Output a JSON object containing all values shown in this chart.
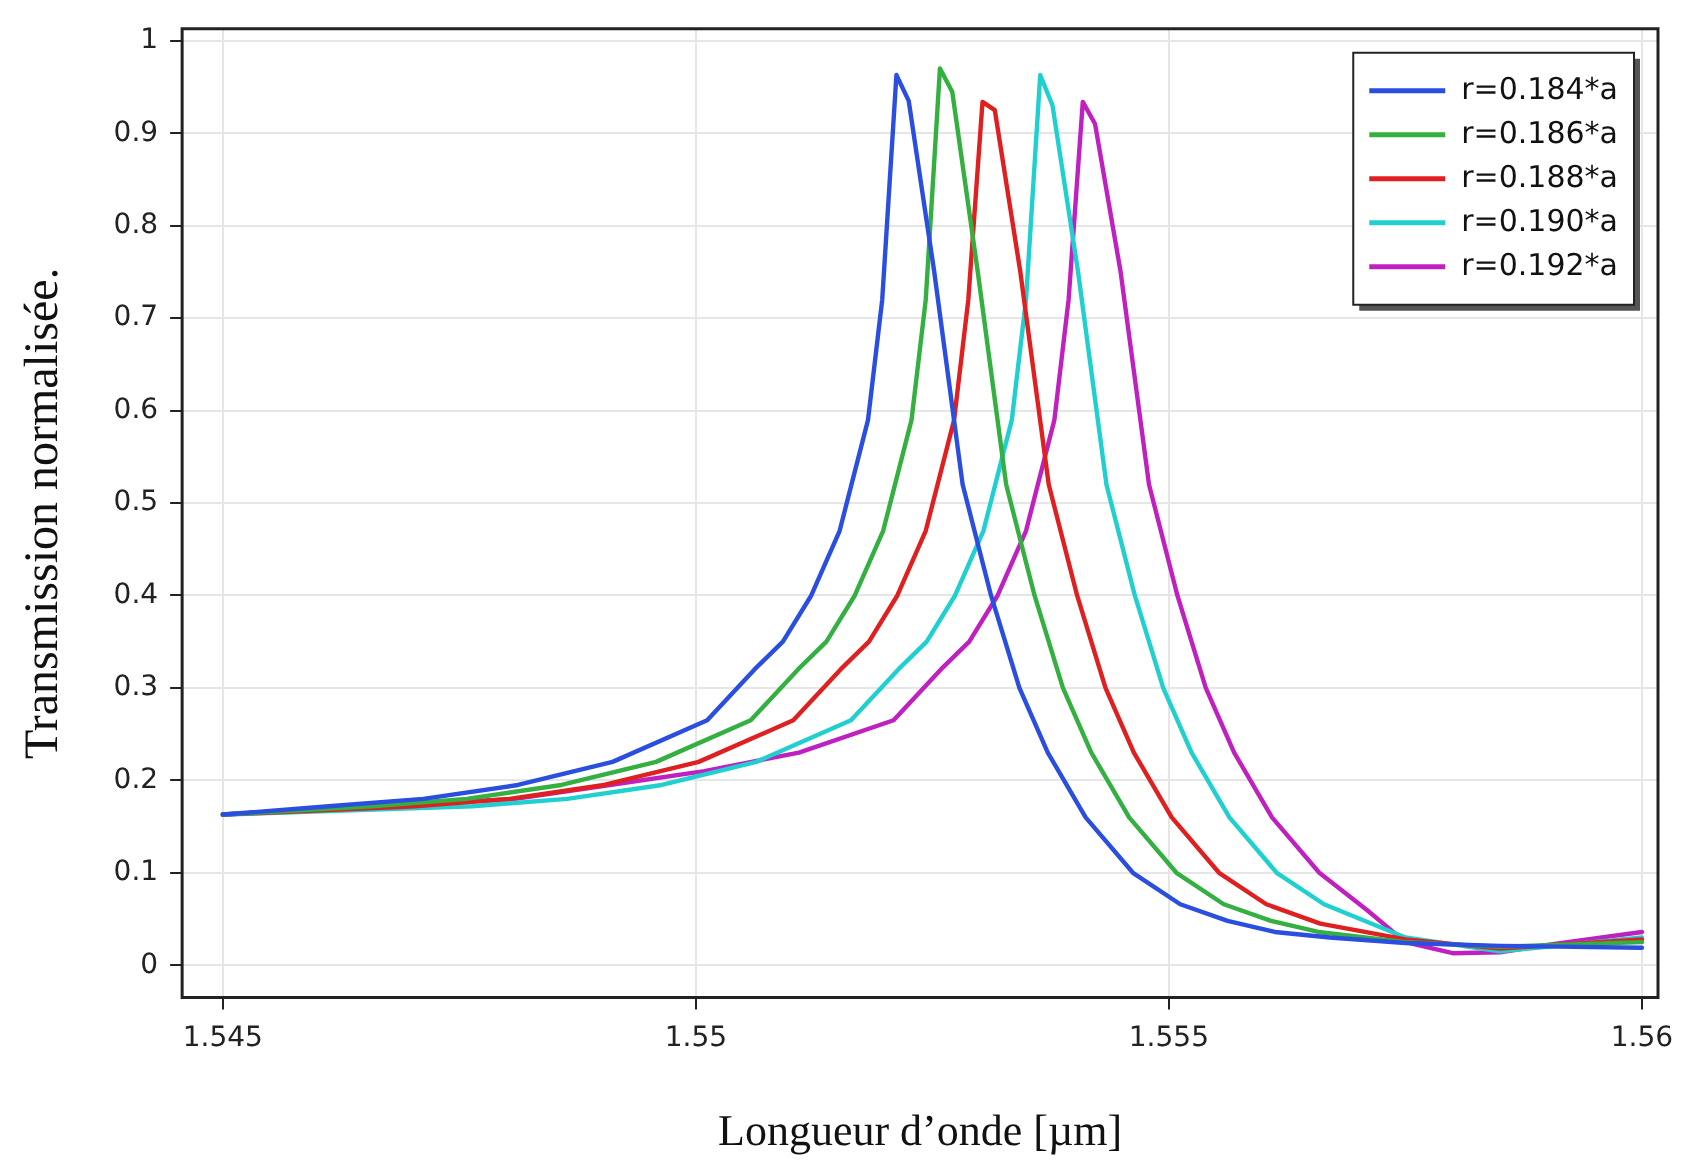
{
  "chart_data": {
    "type": "line",
    "xlabel": "Longueur d’onde [µm]",
    "ylabel": "Transmission normalisée.",
    "xlim": [
      1.54457,
      1.56017
    ],
    "ylim": [
      -0.035,
      1.013
    ],
    "xticks": [
      1.545,
      1.55,
      1.555,
      1.56
    ],
    "yticks": [
      0,
      0.1,
      0.2,
      0.3,
      0.4,
      0.5,
      0.6,
      0.7,
      0.8,
      0.9,
      1
    ],
    "grid": true,
    "legend": "top right",
    "marker": "none",
    "line_style": "solid",
    "series": [
      {
        "name": "r=0.184*a",
        "color": "#2a4fe0",
        "x": [
          1.545,
          1.54612,
          1.54712,
          1.54812,
          1.54912,
          1.55012,
          1.55062,
          1.55092,
          1.55122,
          1.55152,
          1.55182,
          1.55197,
          1.55212,
          1.55225,
          1.55252,
          1.55282,
          1.55312,
          1.55342,
          1.55372,
          1.55412,
          1.55462,
          1.55512,
          1.55562,
          1.55612,
          1.5567,
          1.5575,
          1.5585,
          1.56
        ],
        "values": [
          0.163,
          0.172,
          0.18,
          0.195,
          0.22,
          0.265,
          0.32,
          0.35,
          0.4,
          0.47,
          0.59,
          0.72,
          0.963,
          0.935,
          0.75,
          0.52,
          0.4,
          0.3,
          0.23,
          0.16,
          0.1,
          0.066,
          0.048,
          0.036,
          0.03,
          0.024,
          0.021,
          0.019
        ]
      },
      {
        "name": "r=0.186*a",
        "color": "#33b040",
        "x": [
          1.545,
          1.54658,
          1.54758,
          1.54858,
          1.54958,
          1.55058,
          1.55108,
          1.55138,
          1.55168,
          1.55198,
          1.55228,
          1.55243,
          1.55258,
          1.55271,
          1.55298,
          1.55328,
          1.55358,
          1.55388,
          1.55418,
          1.55458,
          1.55508,
          1.55558,
          1.55608,
          1.55658,
          1.5575,
          1.5585,
          1.56
        ],
        "values": [
          0.163,
          0.172,
          0.18,
          0.195,
          0.22,
          0.265,
          0.32,
          0.35,
          0.4,
          0.47,
          0.59,
          0.72,
          0.97,
          0.945,
          0.75,
          0.52,
          0.4,
          0.3,
          0.23,
          0.16,
          0.1,
          0.066,
          0.048,
          0.036,
          0.025,
          0.02,
          0.025
        ]
      },
      {
        "name": "r=0.188*a",
        "color": "#e02020",
        "x": [
          1.545,
          1.54703,
          1.54803,
          1.54903,
          1.55003,
          1.55103,
          1.55153,
          1.55183,
          1.55213,
          1.55243,
          1.55273,
          1.55288,
          1.55303,
          1.55316,
          1.55343,
          1.55373,
          1.55403,
          1.55433,
          1.55463,
          1.55503,
          1.55553,
          1.55603,
          1.5566,
          1.5575,
          1.5585,
          1.56
        ],
        "values": [
          0.163,
          0.172,
          0.18,
          0.195,
          0.22,
          0.265,
          0.32,
          0.35,
          0.4,
          0.47,
          0.59,
          0.72,
          0.934,
          0.925,
          0.75,
          0.52,
          0.4,
          0.3,
          0.23,
          0.16,
          0.1,
          0.066,
          0.045,
          0.028,
          0.018,
          0.028
        ]
      },
      {
        "name": "r=0.190*a",
        "color": "#20d0d0",
        "x": [
          1.545,
          1.54764,
          1.54864,
          1.54964,
          1.55064,
          1.55164,
          1.55214,
          1.55244,
          1.55274,
          1.55304,
          1.55334,
          1.55349,
          1.55364,
          1.55377,
          1.55404,
          1.55434,
          1.55464,
          1.55494,
          1.55524,
          1.55564,
          1.55614,
          1.55664,
          1.5575,
          1.5585,
          1.56
        ],
        "values": [
          0.163,
          0.172,
          0.18,
          0.195,
          0.22,
          0.265,
          0.32,
          0.35,
          0.4,
          0.47,
          0.59,
          0.72,
          0.963,
          0.93,
          0.75,
          0.52,
          0.4,
          0.3,
          0.23,
          0.16,
          0.1,
          0.066,
          0.03,
          0.015,
          0.03
        ]
      },
      {
        "name": "r=0.192*a",
        "color": "#c020c0",
        "x": [
          1.545,
          1.54809,
          1.54909,
          1.55009,
          1.55109,
          1.55209,
          1.55259,
          1.55289,
          1.55319,
          1.55349,
          1.55379,
          1.55394,
          1.55409,
          1.55422,
          1.55449,
          1.55479,
          1.55509,
          1.55539,
          1.55569,
          1.55609,
          1.55659,
          1.55709,
          1.5575,
          1.558,
          1.5585,
          1.559,
          1.56
        ],
        "values": [
          0.163,
          0.18,
          0.195,
          0.21,
          0.23,
          0.265,
          0.32,
          0.35,
          0.4,
          0.47,
          0.59,
          0.72,
          0.934,
          0.91,
          0.75,
          0.52,
          0.4,
          0.3,
          0.23,
          0.16,
          0.1,
          0.06,
          0.025,
          0.013,
          0.014,
          0.022,
          0.036
        ]
      }
    ]
  }
}
